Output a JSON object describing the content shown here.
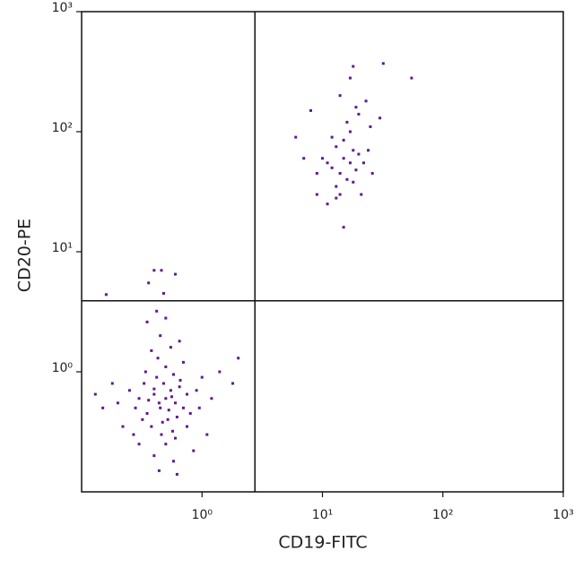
{
  "chart_data": {
    "type": "scatter",
    "xlabel": "CD19-FITC",
    "ylabel": "CD20-PE",
    "xscale": "log",
    "yscale": "log",
    "xlim": [
      0.1,
      1000
    ],
    "ylim": [
      0.1,
      1000
    ],
    "xticks": [
      {
        "value": 1,
        "label": "10⁰"
      },
      {
        "value": 10,
        "label": "10¹"
      },
      {
        "value": 100,
        "label": "10²"
      },
      {
        "value": 1000,
        "label": "10³"
      }
    ],
    "yticks": [
      {
        "value": 1,
        "label": "10⁰"
      },
      {
        "value": 10,
        "label": "10¹"
      },
      {
        "value": 100,
        "label": "10²"
      },
      {
        "value": 1000,
        "label": "10³"
      }
    ],
    "quadrant_x": 2.75,
    "quadrant_y": 3.9,
    "series": [
      {
        "color": "#5e1a8e",
        "x": [
          0.5,
          0.45,
          0.55,
          0.4,
          0.6,
          0.35,
          0.48,
          0.52,
          0.42,
          0.65,
          0.3,
          0.7,
          0.38,
          0.58,
          0.46,
          0.33,
          0.62,
          0.5,
          0.28,
          0.75,
          0.44,
          0.56,
          0.4,
          0.53,
          0.36,
          0.66,
          0.47,
          0.25,
          0.8,
          0.43,
          0.6,
          0.32,
          0.5,
          0.9,
          0.2,
          0.22,
          0.55,
          0.45,
          0.38,
          0.7,
          1.0,
          1.2,
          0.18,
          0.15,
          0.3,
          0.4,
          0.58,
          0.35,
          0.42,
          0.48,
          0.4,
          0.46,
          0.6,
          0.36,
          1.4,
          1.8,
          2.0,
          1.1,
          0.85,
          0.27,
          0.13,
          0.16,
          0.5,
          0.65,
          0.75,
          0.95,
          0.34,
          0.57,
          0.44,
          0.62,
          15,
          12,
          18,
          14,
          17,
          13,
          16,
          20,
          11,
          19,
          15,
          13,
          17,
          10,
          22,
          14,
          12,
          18,
          16,
          9,
          24,
          8,
          20,
          25,
          30,
          17,
          18,
          32,
          55,
          7,
          6,
          11,
          15,
          13,
          21,
          26,
          9,
          14,
          23,
          19
        ],
        "values": [
          0.6,
          0.5,
          0.7,
          0.65,
          0.55,
          0.45,
          0.8,
          0.4,
          0.9,
          0.75,
          0.6,
          0.5,
          0.35,
          0.95,
          0.3,
          0.8,
          0.42,
          1.1,
          0.5,
          0.65,
          0.55,
          0.62,
          0.72,
          0.48,
          0.58,
          0.85,
          0.38,
          0.7,
          0.45,
          1.3,
          0.28,
          0.4,
          0.25,
          0.7,
          0.55,
          0.35,
          1.6,
          2.0,
          1.5,
          1.2,
          0.9,
          0.6,
          0.8,
          0.5,
          0.25,
          0.2,
          0.18,
          2.6,
          3.2,
          4.5,
          7.0,
          7.0,
          6.5,
          5.5,
          1.0,
          0.8,
          1.3,
          0.3,
          0.22,
          0.3,
          0.65,
          4.4,
          2.8,
          1.8,
          0.35,
          0.5,
          1.0,
          0.32,
          0.15,
          0.14,
          60,
          50,
          70,
          45,
          55,
          75,
          40,
          65,
          55,
          48,
          85,
          35,
          100,
          60,
          55,
          30,
          90,
          38,
          120,
          45,
          70,
          150,
          140,
          110,
          130,
          280,
          350,
          370,
          280,
          60,
          90,
          25,
          16,
          28,
          30,
          45,
          30,
          200,
          180,
          160
        ]
      }
    ]
  }
}
